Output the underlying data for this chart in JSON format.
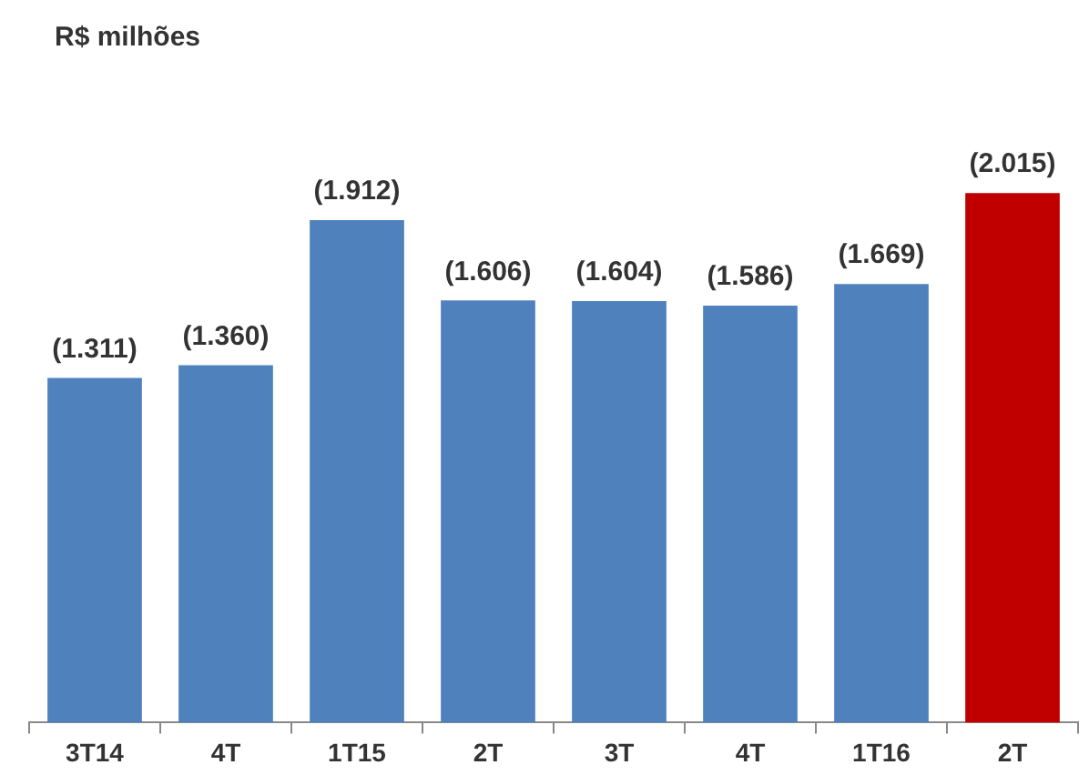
{
  "chart_data": {
    "type": "bar",
    "title": "R$ milhões",
    "categories": [
      "3T14",
      "4T",
      "1T15",
      "2T",
      "3T",
      "4T",
      "1T16",
      "2T"
    ],
    "values": [
      1311,
      1360,
      1912,
      1606,
      1604,
      1586,
      1669,
      2015
    ],
    "colors": [
      "#4f81bd",
      "#4f81bd",
      "#4f81bd",
      "#4f81bd",
      "#4f81bd",
      "#4f81bd",
      "#4f81bd",
      "#c00000"
    ],
    "value_labels": [
      "(1.311)",
      "(1.360)",
      "(1.912)",
      "(1.606)",
      "(1.604)",
      "(1.586)",
      "(1.669)",
      "(2.015)"
    ],
    "tick_labels": "x",
    "grid": false,
    "legend": false
  }
}
